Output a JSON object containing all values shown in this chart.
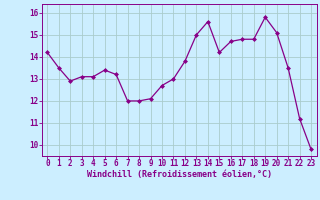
{
  "x": [
    0,
    1,
    2,
    3,
    4,
    5,
    6,
    7,
    8,
    9,
    10,
    11,
    12,
    13,
    14,
    15,
    16,
    17,
    18,
    19,
    20,
    21,
    22,
    23
  ],
  "y": [
    14.2,
    13.5,
    12.9,
    13.1,
    13.1,
    13.4,
    13.2,
    12.0,
    12.0,
    12.1,
    12.7,
    13.0,
    13.8,
    15.0,
    15.6,
    14.2,
    14.7,
    14.8,
    14.8,
    15.8,
    15.1,
    13.5,
    11.2,
    9.8
  ],
  "line_color": "#880088",
  "marker": "D",
  "marker_size": 2.0,
  "marker_edge_width": 0.5,
  "line_width": 0.9,
  "bg_color": "#cceeff",
  "grid_color": "#aacccc",
  "xlabel": "Windchill (Refroidissement éolien,°C)",
  "xlabel_color": "#880088",
  "ylabel_ticks": [
    10,
    11,
    12,
    13,
    14,
    15,
    16
  ],
  "xtick_labels": [
    "0",
    "1",
    "2",
    "3",
    "4",
    "5",
    "6",
    "7",
    "8",
    "9",
    "10",
    "11",
    "12",
    "13",
    "14",
    "15",
    "16",
    "17",
    "18",
    "19",
    "20",
    "21",
    "22",
    "23"
  ],
  "ylim": [
    9.5,
    16.4
  ],
  "xlim": [
    -0.5,
    23.5
  ],
  "tick_color": "#880088",
  "spine_color": "#880088",
  "tick_fontsize": 5.5,
  "xlabel_fontsize": 6.0
}
